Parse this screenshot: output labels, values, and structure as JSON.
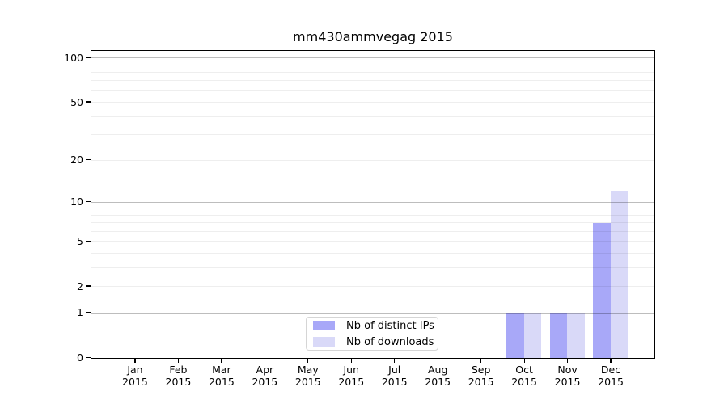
{
  "chart_data": {
    "type": "bar",
    "title": "mm430ammvegag 2015",
    "categories": [
      "Jan",
      "Feb",
      "Mar",
      "Apr",
      "May",
      "Jun",
      "Jul",
      "Aug",
      "Sep",
      "Oct",
      "Nov",
      "Dec"
    ],
    "year_label": "2015",
    "series": [
      {
        "name": "Nb of distinct IPs",
        "color": "#a8a8f8",
        "values": [
          0,
          0,
          0,
          0,
          0,
          0,
          0,
          0,
          0,
          1,
          1,
          7
        ]
      },
      {
        "name": "Nb of downloads",
        "color": "#d9d9f8",
        "values": [
          0,
          0,
          0,
          0,
          0,
          0,
          0,
          0,
          0,
          1,
          1,
          12
        ]
      }
    ],
    "yscale": "log10(1+y)",
    "ylim": [
      0,
      110
    ],
    "yticks": [
      0,
      1,
      2,
      5,
      10,
      20,
      50,
      100
    ],
    "gridlines": {
      "major": [
        1,
        10,
        100
      ],
      "minor": [
        2,
        3,
        4,
        5,
        6,
        7,
        8,
        9,
        20,
        30,
        40,
        50,
        60,
        70,
        80,
        90
      ]
    },
    "grid": "horizontal",
    "legend_position": "bottom-center-inside",
    "axis_color": "#000000"
  }
}
